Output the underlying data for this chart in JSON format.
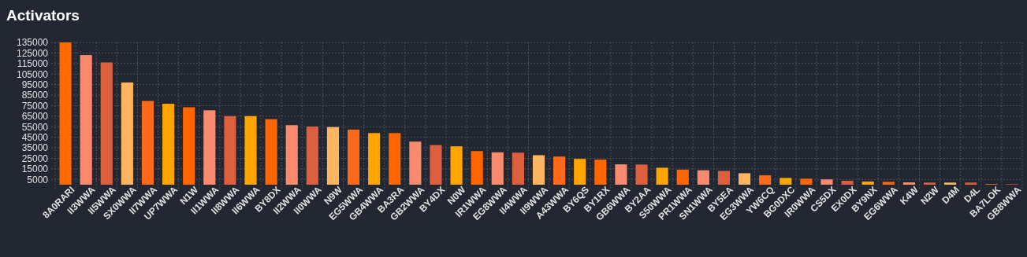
{
  "chart_data": {
    "type": "bar",
    "title": "Activators",
    "categories": [
      "8A0RARI",
      "II3WWA",
      "II5WWA",
      "SX0WWA",
      "II7WWA",
      "UP7WWA",
      "N1W",
      "II1WWA",
      "II8WWA",
      "II6WWA",
      "BY8DX",
      "II2WWA",
      "II0WWA",
      "N9W",
      "EG5WWA",
      "GB4WWA",
      "BA3RA",
      "GB2WWA",
      "BY4DX",
      "N0W",
      "IR1WWA",
      "EG8WWA",
      "II4WWA",
      "II9WWA",
      "A43WWA",
      "BY6QS",
      "BY1RX",
      "GB6WWA",
      "BY2AA",
      "S50WWA",
      "PR1WWA",
      "SN1WWA",
      "BY5EA",
      "EG3WWA",
      "YW6CQ",
      "BG0DXC",
      "IR0WWA",
      "CS5DX",
      "EX0DX",
      "BY9NX",
      "EG6WWA",
      "K4W",
      "N2W",
      "D4M",
      "D4L",
      "BA7LOK",
      "GB8WWA"
    ],
    "values": [
      135000,
      123000,
      116000,
      97000,
      79500,
      76800,
      73500,
      70600,
      65100,
      65100,
      62200,
      56500,
      55200,
      54700,
      52300,
      49000,
      49000,
      40900,
      37600,
      36400,
      31900,
      30700,
      30400,
      28000,
      26700,
      24500,
      23800,
      19300,
      19100,
      16100,
      14300,
      13700,
      13100,
      10900,
      8900,
      6400,
      5700,
      5000,
      3700,
      3000,
      2700,
      2200,
      2000,
      2000,
      2000,
      500,
      500
    ],
    "colors": [
      "#ff6a00",
      "#fa8a6e",
      "#dd5f3d",
      "#ffb560",
      "#ff6a1a",
      "#ffa500",
      "#ff6600",
      "#fa8a6e",
      "#dd5f3d",
      "#ffa500",
      "#ff6600",
      "#fa8a6e",
      "#dd5f3d",
      "#ffb560",
      "#ff6a1a",
      "#ffa500",
      "#ff6600",
      "#fa8a6e",
      "#dd5f3d",
      "#ffa500",
      "#ff6600",
      "#fa8a6e",
      "#dd5f3d",
      "#ffb560",
      "#ff6a1a",
      "#ffa500",
      "#ff6600",
      "#fa8a6e",
      "#dd5f3d",
      "#ffa500",
      "#ff6600",
      "#fa8a6e",
      "#dd5f3d",
      "#ffb560",
      "#ff6a1a",
      "#ffa500",
      "#ff6600",
      "#fa8a6e",
      "#dd5f3d",
      "#ffa500",
      "#ff6600",
      "#fa8a6e",
      "#dd5f3d",
      "#ffb560",
      "#dd5f3d",
      "#ffa500",
      "#dd5f3d"
    ],
    "ylim": [
      0,
      135000
    ],
    "yticks": [
      5000,
      15000,
      25000,
      35000,
      45000,
      55000,
      65000,
      75000,
      85000,
      95000,
      105000,
      115000,
      125000,
      135000
    ],
    "grid": true
  }
}
